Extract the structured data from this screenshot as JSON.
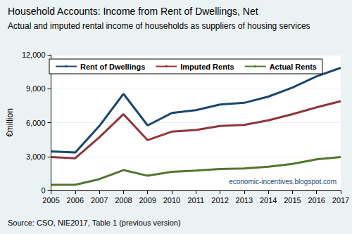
{
  "chart_data": {
    "type": "line",
    "title": "Household Accounts: Income from Rent of Dwellings, Net",
    "subtitle": "Actual and imputed rental income of households as suppliers of housing services",
    "ylabel": "€million",
    "annotation": "economic-incentives.blogspot.com",
    "source": "Source: CSO, NIE2017, Table 1 (previous version)",
    "categories": [
      "2005",
      "2006",
      "2007",
      "2008",
      "2009",
      "2010",
      "2011",
      "2012",
      "2013",
      "2014",
      "2015",
      "2016",
      "2017"
    ],
    "series": [
      {
        "name": "Rent of Dwellings",
        "color": "#1a476f",
        "values": [
          3450,
          3350,
          5700,
          8550,
          5750,
          6850,
          7100,
          7600,
          7750,
          8300,
          9100,
          10100,
          10850
        ]
      },
      {
        "name": "Imputed Rents",
        "color": "#90353b",
        "values": [
          2950,
          2850,
          4700,
          6750,
          4450,
          5200,
          5350,
          5700,
          5800,
          6200,
          6750,
          7350,
          7900
        ]
      },
      {
        "name": "Actual Rents",
        "color": "#55752f",
        "values": [
          500,
          500,
          1000,
          1800,
          1300,
          1650,
          1750,
          1900,
          1950,
          2100,
          2350,
          2750,
          2950
        ]
      }
    ],
    "ylim": [
      0,
      12000
    ],
    "yticks": [
      0,
      {
        "value": 3000,
        "label": "3,000"
      },
      {
        "value": 6000,
        "label": "6,000"
      },
      {
        "value": 9000,
        "label": "9,000"
      },
      {
        "value": 12000,
        "label": "12,000"
      }
    ],
    "grid": true,
    "legend": "top"
  }
}
